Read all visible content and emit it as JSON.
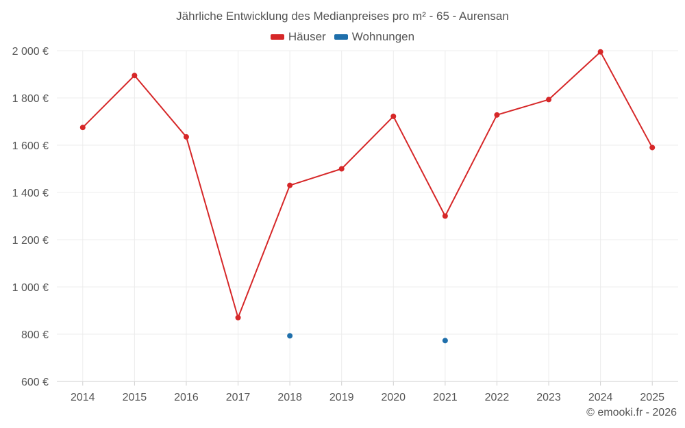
{
  "chart_data": {
    "type": "line",
    "title": "Jährliche Entwicklung des Medianpreises pro m² - 65 - Aurensan",
    "categories": [
      "2014",
      "2015",
      "2016",
      "2017",
      "2018",
      "2019",
      "2020",
      "2021",
      "2022",
      "2023",
      "2024",
      "2025"
    ],
    "series": [
      {
        "name": "Häuser",
        "color": "#d62728",
        "values": [
          1675,
          1895,
          1635,
          870,
          1430,
          1500,
          1722,
          1300,
          1728,
          1793,
          1995,
          1590
        ]
      },
      {
        "name": "Wohnungen",
        "color": "#1f6fab",
        "values": [
          null,
          null,
          null,
          null,
          793,
          null,
          null,
          773,
          null,
          null,
          null,
          null
        ]
      }
    ],
    "ylim": [
      600,
      2000
    ],
    "yticks": [
      600,
      800,
      1000,
      1200,
      1400,
      1600,
      1800,
      2000
    ],
    "ytick_labels": [
      "600 €",
      "800 €",
      "1 000 €",
      "1 200 €",
      "1 400 €",
      "1 600 €",
      "1 800 €",
      "2 000 €"
    ],
    "grid": true,
    "legend_position": "top-center",
    "xlabel": "",
    "ylabel": ""
  },
  "credit": "© emooki.fr - 2026"
}
